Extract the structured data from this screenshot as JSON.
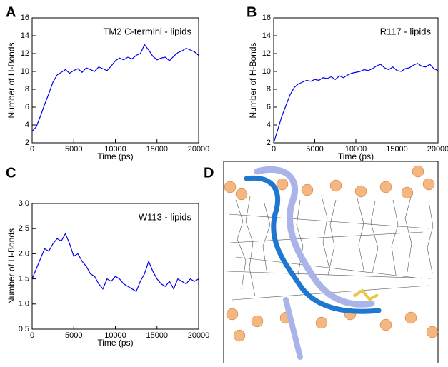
{
  "chart_data": [
    {
      "type": "line",
      "label": "A",
      "annotation": "TM2 C-termini - lipids",
      "xlabel": "Time (ps)",
      "ylabel": "Number of H-Bonds",
      "color": "#0000ee",
      "x": [
        0,
        500,
        1000,
        1500,
        2000,
        2500,
        3000,
        3500,
        4000,
        4500,
        5000,
        5500,
        6000,
        6500,
        7000,
        7500,
        8000,
        8500,
        9000,
        9500,
        10000,
        10500,
        11000,
        11500,
        12000,
        12500,
        13000,
        13500,
        14000,
        14500,
        15000,
        15500,
        16000,
        16500,
        17000,
        17500,
        18000,
        18500,
        19000,
        19500,
        20000
      ],
      "values": [
        3.3,
        3.8,
        5.0,
        6.3,
        7.5,
        8.8,
        9.6,
        9.9,
        10.2,
        9.8,
        10.1,
        10.3,
        9.9,
        10.4,
        10.2,
        10.0,
        10.5,
        10.3,
        10.1,
        10.6,
        11.2,
        11.5,
        11.3,
        11.6,
        11.4,
        11.8,
        12.0,
        13.0,
        12.4,
        11.7,
        11.3,
        11.5,
        11.6,
        11.2,
        11.7,
        12.1,
        12.3,
        12.6,
        12.4,
        12.2,
        11.8
      ],
      "xlim": [
        0,
        20000
      ],
      "xticks": [
        0,
        5000,
        10000,
        15000,
        20000
      ],
      "ylim": [
        2,
        16
      ],
      "yticks": [
        2,
        4,
        6,
        8,
        10,
        12,
        14,
        16
      ]
    },
    {
      "type": "line",
      "label": "B",
      "annotation": "R117 - lipids",
      "xlabel": "Time (ps)",
      "ylabel": "Number of H-Bonds",
      "color": "#0000ee",
      "x": [
        0,
        500,
        1000,
        1500,
        2000,
        2500,
        3000,
        3500,
        4000,
        4500,
        5000,
        5500,
        6000,
        6500,
        7000,
        7500,
        8000,
        8500,
        9000,
        9500,
        10000,
        10500,
        11000,
        11500,
        12000,
        12500,
        13000,
        13500,
        14000,
        14500,
        15000,
        15500,
        16000,
        16500,
        17000,
        17500,
        18000,
        18500,
        19000,
        19500,
        20000
      ],
      "values": [
        2.0,
        3.5,
        5.0,
        6.2,
        7.4,
        8.2,
        8.6,
        8.8,
        9.0,
        8.9,
        9.1,
        9.0,
        9.3,
        9.2,
        9.4,
        9.1,
        9.5,
        9.3,
        9.6,
        9.8,
        9.9,
        10.0,
        10.2,
        10.1,
        10.3,
        10.6,
        10.8,
        10.4,
        10.2,
        10.5,
        10.1,
        10.0,
        10.3,
        10.4,
        10.7,
        10.9,
        10.6,
        10.5,
        10.8,
        10.3,
        10.1
      ],
      "xlim": [
        0,
        20000
      ],
      "xticks": [
        0,
        5000,
        10000,
        15000,
        20000
      ],
      "ylim": [
        2,
        16
      ],
      "yticks": [
        2,
        4,
        6,
        8,
        10,
        12,
        14,
        16
      ]
    },
    {
      "type": "line",
      "label": "C",
      "annotation": "W113 - lipids",
      "xlabel": "Time (ps)",
      "ylabel": "Number of H-Bonds",
      "color": "#0000ee",
      "x": [
        0,
        500,
        1000,
        1500,
        2000,
        2500,
        3000,
        3500,
        4000,
        4500,
        5000,
        5500,
        6000,
        6500,
        7000,
        7500,
        8000,
        8500,
        9000,
        9500,
        10000,
        10500,
        11000,
        11500,
        12000,
        12500,
        13000,
        13500,
        14000,
        14500,
        15000,
        15500,
        16000,
        16500,
        17000,
        17500,
        18000,
        18500,
        19000,
        19500,
        20000
      ],
      "values": [
        1.5,
        1.7,
        1.9,
        2.1,
        2.05,
        2.2,
        2.3,
        2.25,
        2.4,
        2.2,
        1.95,
        2.0,
        1.85,
        1.75,
        1.6,
        1.55,
        1.4,
        1.3,
        1.5,
        1.45,
        1.55,
        1.5,
        1.4,
        1.35,
        1.3,
        1.25,
        1.45,
        1.6,
        1.85,
        1.65,
        1.5,
        1.4,
        1.35,
        1.45,
        1.3,
        1.5,
        1.45,
        1.4,
        1.5,
        1.45,
        1.5
      ],
      "xlim": [
        0,
        20000
      ],
      "xticks": [
        0,
        5000,
        10000,
        15000,
        20000
      ],
      "ylim": [
        0.5,
        3.0
      ],
      "yticks": [
        0.5,
        {
          "value": 1.0,
          "label": "1.0"
        },
        1.5,
        {
          "value": 2.0,
          "label": "2.0"
        },
        2.5,
        {
          "value": 3.0,
          "label": "3.0"
        }
      ]
    }
  ],
  "image": {
    "label": "D"
  }
}
